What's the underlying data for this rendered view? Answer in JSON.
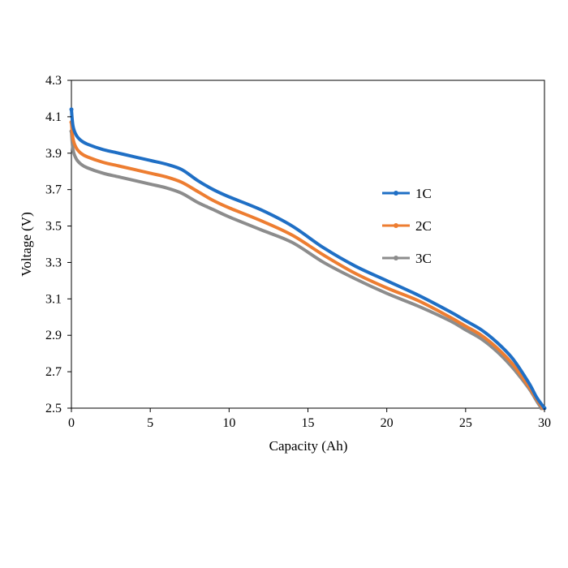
{
  "chart_data": {
    "type": "line",
    "title": "",
    "xlabel": "Capacity (Ah)",
    "ylabel": "Voltage (V)",
    "xlim": [
      0,
      30
    ],
    "ylim": [
      2.5,
      4.3
    ],
    "xticks": [
      "0",
      "5",
      "10",
      "15",
      "20",
      "25",
      "30"
    ],
    "yticks": [
      "2.5",
      "2.7",
      "2.9",
      "3.1",
      "3.3",
      "3.5",
      "3.7",
      "3.9",
      "4.1",
      "4.3"
    ],
    "grid": false,
    "legend_position": "right",
    "series": [
      {
        "name": "1C",
        "color": "#1f6fc5",
        "x": [
          0,
          0.1,
          0.3,
          0.6,
          1,
          2,
          3,
          4,
          5,
          6,
          7,
          8,
          9,
          10,
          12,
          14,
          16,
          18,
          20,
          22,
          24,
          25,
          26,
          27,
          28,
          29,
          29.5,
          30
        ],
        "y": [
          4.14,
          4.05,
          4.0,
          3.97,
          3.95,
          3.92,
          3.9,
          3.88,
          3.86,
          3.84,
          3.81,
          3.75,
          3.7,
          3.66,
          3.59,
          3.5,
          3.38,
          3.28,
          3.2,
          3.12,
          3.03,
          2.98,
          2.93,
          2.86,
          2.77,
          2.64,
          2.56,
          2.5
        ]
      },
      {
        "name": "2C",
        "color": "#ed7d31",
        "x": [
          0,
          0.1,
          0.3,
          0.6,
          1,
          2,
          3,
          4,
          5,
          6,
          7,
          8,
          9,
          10,
          12,
          14,
          16,
          18,
          20,
          22,
          24,
          25,
          26,
          27,
          28,
          29,
          29.5,
          29.9
        ],
        "y": [
          4.07,
          3.98,
          3.93,
          3.9,
          3.88,
          3.85,
          3.83,
          3.81,
          3.79,
          3.77,
          3.74,
          3.69,
          3.64,
          3.6,
          3.53,
          3.45,
          3.34,
          3.24,
          3.16,
          3.09,
          3.0,
          2.95,
          2.9,
          2.83,
          2.74,
          2.62,
          2.55,
          2.5
        ]
      },
      {
        "name": "3C",
        "color": "#8c8c8c",
        "x": [
          0,
          0.1,
          0.3,
          0.6,
          1,
          2,
          3,
          4,
          5,
          6,
          7,
          8,
          9,
          10,
          12,
          14,
          16,
          18,
          20,
          22,
          24,
          25,
          26,
          27,
          28,
          29,
          29.5,
          29.8
        ],
        "y": [
          4.02,
          3.92,
          3.87,
          3.84,
          3.82,
          3.79,
          3.77,
          3.75,
          3.73,
          3.71,
          3.68,
          3.63,
          3.59,
          3.55,
          3.48,
          3.41,
          3.3,
          3.21,
          3.13,
          3.06,
          2.98,
          2.93,
          2.88,
          2.81,
          2.72,
          2.61,
          2.54,
          2.5
        ]
      }
    ]
  }
}
